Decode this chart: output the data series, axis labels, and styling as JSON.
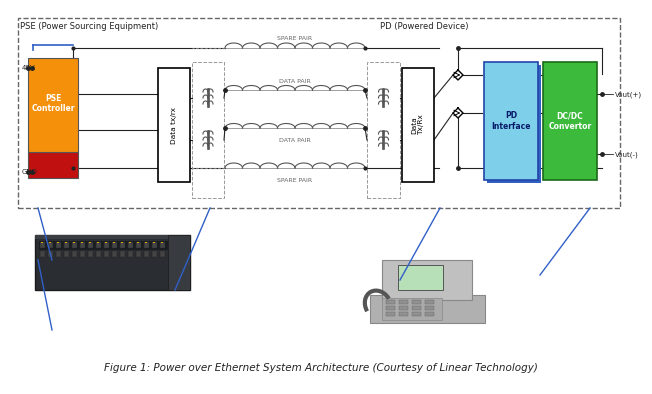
{
  "title": "Figure 1: Power over Ethernet System Architecture (Courtesy of Linear Technology)",
  "pse_label": "PSE (Power Sourcing Equipment)",
  "pd_label": "PD (Powered Device)",
  "pse_controller_label": "PSE\nController",
  "data_tx_rx_pse_label": "Data tx/rx",
  "data_tx_rx_pd_label": "Data\nTx/Rx",
  "pd_interface_label": "PD\nInterface",
  "dcdc_label": "DC/DC\nConvertor",
  "spare_pair_top": "SPARE PAIR",
  "spare_pair_bot": "SPARE PAIR",
  "data_pair_top": "DATA PAIR",
  "data_pair_bot": "DATA PAIR",
  "v48": "48V",
  "gnd": "GND",
  "vout_pos": "Vout(+)",
  "vout_neg": "Vout(-)",
  "bg_color": "#ffffff",
  "pse_ctrl_orange": "#f5900a",
  "pse_ctrl_red": "#c01010",
  "pd_interface_light": "#7ecfea",
  "pd_interface_dark": "#3060c0",
  "dcdc_green": "#3cba3c",
  "dashed_color": "#666666",
  "line_color": "#222222",
  "coil_color": "#555555",
  "blue_line": "#3060c8",
  "text_color": "#111111",
  "label_fs": 6.0,
  "small_fs": 5.0,
  "caption_fs": 7.5
}
